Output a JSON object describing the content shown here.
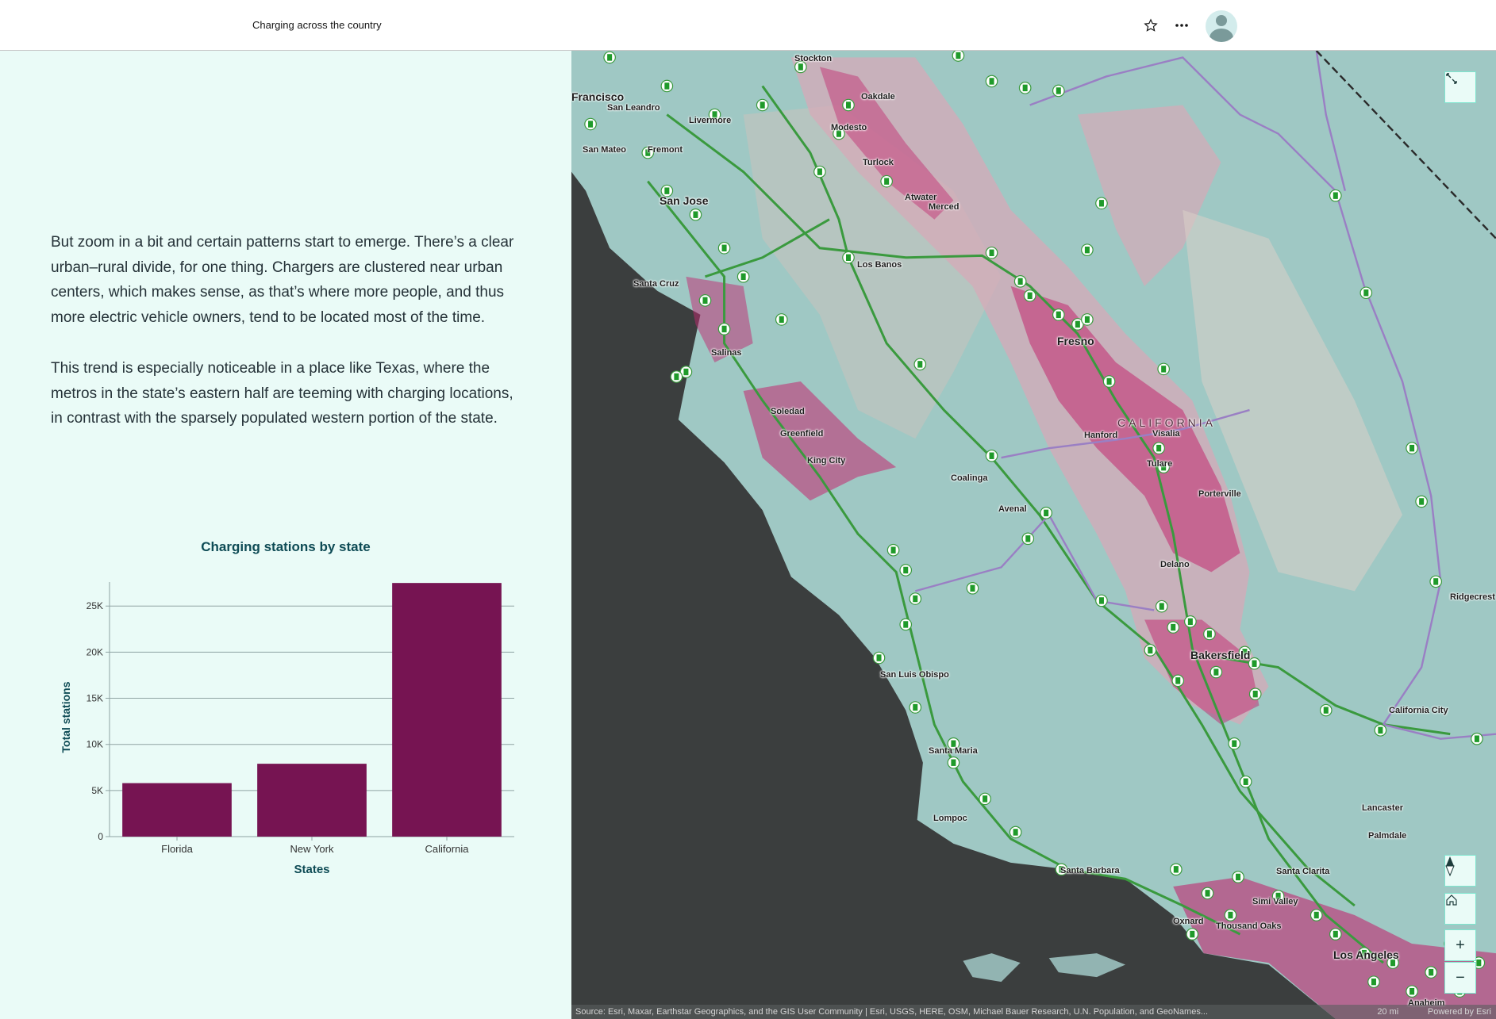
{
  "header": {
    "title": "Charging across the country",
    "favorite_icon": "star-icon",
    "more_icon": "more-options-icon",
    "avatar_icon": "user-avatar-icon"
  },
  "story": {
    "paragraphs": [
      "But zoom in a bit and certain patterns start to emerge. There’s a clear urban–rural divide, for one thing. Chargers are clustered near urban centers, which makes sense, as that’s where more people, and thus more electric vehicle owners, tend to be located most of the time.",
      "This trend is especially noticeable in a place like Texas, where the metros in the state’s eastern half are teeming with charging locations, in contrast with the sparsely populated western portion of the state."
    ]
  },
  "chart_data": {
    "type": "bar",
    "title": "Charging stations by state",
    "xlabel": "States",
    "ylabel": "Total stations",
    "categories": [
      "Florida",
      "New York",
      "California"
    ],
    "values": [
      5800,
      7900,
      27500
    ],
    "ylim": [
      0,
      27600
    ],
    "yticks": [
      0,
      5000,
      10000,
      15000,
      20000,
      25000
    ],
    "ytick_labels": [
      "0",
      "5K",
      "10K",
      "15K",
      "20K",
      "25K"
    ],
    "grid": true,
    "bar_color": "#761452"
  },
  "map": {
    "labels": {
      "stockton": "Stockton",
      "oakdale": "Oakdale",
      "francisco": "Francisco",
      "san_leandro": "San Leandro",
      "livermore": "Livermore",
      "modesto": "Modesto",
      "san_mateo": "San Mateo",
      "fremont": "Fremont",
      "turlock": "Turlock",
      "san_jose": "San Jose",
      "atwater": "Atwater",
      "merced": "Merced",
      "los_banos": "Los Banos",
      "santa_cruz": "Santa Cruz",
      "fresno": "Fresno",
      "salinas": "Salinas",
      "soledad": "Soledad",
      "california": "CALIFORNIA",
      "hanford": "Hanford",
      "visalia": "Visalia",
      "greenfield": "Greenfield",
      "tulare": "Tulare",
      "king_city": "King City",
      "coalinga": "Coalinga",
      "porterville": "Porterville",
      "avenal": "Avenal",
      "delano": "Delano",
      "ridgecrest": "Ridgecrest",
      "bakersfield": "Bakersfield",
      "san_luis_obispo": "San Luis Obispo",
      "california_city": "California City",
      "santa_maria": "Santa Maria",
      "lancaster": "Lancaster",
      "lompoc": "Lompoc",
      "palmdale": "Palmdale",
      "santa_barbara": "Santa Barbara",
      "santa_clarita": "Santa Clarita",
      "simi_valley": "Simi Valley",
      "oxnard": "Oxnard",
      "thousand_oaks": "Thousand Oaks",
      "los_angeles": "Los Angeles",
      "anaheim": "Anaheim"
    },
    "controls": {
      "expand_icon": "expand-icon",
      "compass_icon": "compass-icon",
      "home_icon": "home-icon",
      "zoom_in": "+",
      "zoom_out": "−"
    },
    "attribution": "Source: Esri, Maxar, Earthstar Geographics, and the GIS User Community | Esri, USGS, HERE, OSM, Michael Bauer Research, U.N. Population, and GeoNames...",
    "scale": "20 mi",
    "powered_by": "Powered by Esri",
    "colors": {
      "ocean": "#3b3e3e",
      "land": "#9fc8c4",
      "density": "#c2286f",
      "roads": "#3a9a3e",
      "boundaries": "#9a7fc4"
    }
  }
}
